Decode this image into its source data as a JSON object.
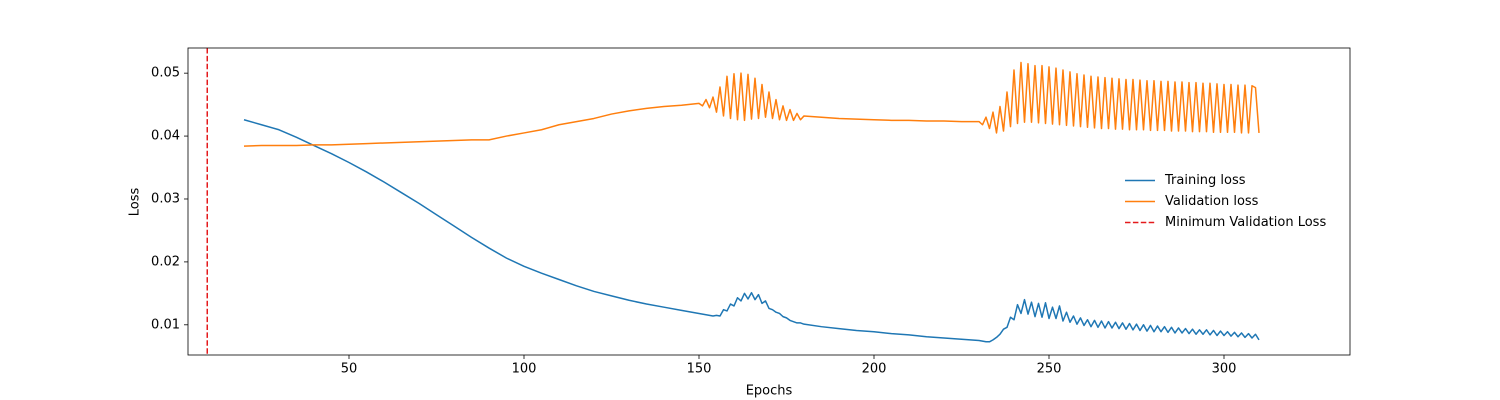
{
  "chart_data": {
    "type": "line",
    "xlabel": "Epochs",
    "ylabel": "Loss",
    "x": [
      20,
      25,
      30,
      35,
      40,
      45,
      50,
      55,
      60,
      65,
      70,
      75,
      80,
      85,
      90,
      95,
      100,
      105,
      110,
      115,
      120,
      125,
      130,
      135,
      140,
      145,
      150,
      151,
      152,
      153,
      154,
      155,
      156,
      157,
      158,
      159,
      160,
      161,
      162,
      163,
      164,
      165,
      166,
      167,
      168,
      169,
      170,
      171,
      172,
      173,
      174,
      175,
      176,
      177,
      178,
      179,
      180,
      185,
      190,
      195,
      200,
      205,
      210,
      215,
      220,
      225,
      230,
      231,
      232,
      233,
      234,
      235,
      236,
      237,
      238,
      239,
      240,
      241,
      242,
      243,
      244,
      245,
      246,
      247,
      248,
      249,
      250,
      251,
      252,
      253,
      254,
      255,
      256,
      257,
      258,
      259,
      260,
      261,
      262,
      263,
      264,
      265,
      266,
      267,
      268,
      269,
      270,
      271,
      272,
      273,
      274,
      275,
      276,
      277,
      278,
      279,
      280,
      281,
      282,
      283,
      284,
      285,
      286,
      287,
      288,
      289,
      290,
      291,
      292,
      293,
      294,
      295,
      296,
      297,
      298,
      299,
      300,
      301,
      302,
      303,
      304,
      305,
      306,
      307,
      308,
      309,
      310
    ],
    "series": [
      {
        "name": "Training loss",
        "color": "#1f77b4",
        "values": [
          0.0426,
          0.0418,
          0.041,
          0.0398,
          0.0385,
          0.0372,
          0.0358,
          0.0343,
          0.0327,
          0.031,
          0.0293,
          0.0275,
          0.0257,
          0.0239,
          0.0222,
          0.0206,
          0.0193,
          0.0182,
          0.0172,
          0.0162,
          0.0153,
          0.0146,
          0.0139,
          0.0133,
          0.0128,
          0.0123,
          0.0118,
          0.0117,
          0.0116,
          0.0115,
          0.0114,
          0.0115,
          0.0114,
          0.0124,
          0.0122,
          0.0133,
          0.013,
          0.0143,
          0.0138,
          0.015,
          0.0141,
          0.0151,
          0.014,
          0.0148,
          0.0134,
          0.0138,
          0.0126,
          0.0124,
          0.012,
          0.0118,
          0.0113,
          0.0111,
          0.0107,
          0.0105,
          0.0103,
          0.0103,
          0.0101,
          0.0097,
          0.0094,
          0.0091,
          0.0089,
          0.0086,
          0.0084,
          0.0081,
          0.0079,
          0.0077,
          0.0075,
          0.0074,
          0.0073,
          0.0073,
          0.0076,
          0.008,
          0.0085,
          0.0093,
          0.0096,
          0.0112,
          0.0108,
          0.0132,
          0.0118,
          0.014,
          0.0117,
          0.0136,
          0.0113,
          0.0134,
          0.0112,
          0.0135,
          0.011,
          0.0128,
          0.011,
          0.013,
          0.0106,
          0.012,
          0.0104,
          0.0114,
          0.0101,
          0.0111,
          0.0099,
          0.0108,
          0.0097,
          0.0107,
          0.0096,
          0.0106,
          0.0095,
          0.0105,
          0.0095,
          0.0104,
          0.0094,
          0.0103,
          0.0093,
          0.0102,
          0.0092,
          0.0101,
          0.0091,
          0.01,
          0.009,
          0.0099,
          0.0089,
          0.0098,
          0.0089,
          0.0097,
          0.0088,
          0.0096,
          0.0087,
          0.0095,
          0.0087,
          0.0094,
          0.0086,
          0.0093,
          0.0085,
          0.0092,
          0.0085,
          0.0092,
          0.0084,
          0.0091,
          0.0083,
          0.009,
          0.0083,
          0.0089,
          0.0082,
          0.0088,
          0.0081,
          0.0087,
          0.008,
          0.0086,
          0.0079,
          0.0085,
          0.0076
        ]
      },
      {
        "name": "Validation loss",
        "color": "#ff7f0e",
        "values": [
          0.0384,
          0.0385,
          0.0385,
          0.0385,
          0.0386,
          0.0386,
          0.0387,
          0.0388,
          0.0389,
          0.039,
          0.0391,
          0.0392,
          0.0393,
          0.0394,
          0.0394,
          0.04,
          0.0405,
          0.041,
          0.0418,
          0.0423,
          0.0428,
          0.0435,
          0.044,
          0.0444,
          0.0447,
          0.0449,
          0.0452,
          0.0448,
          0.0458,
          0.0445,
          0.0462,
          0.0438,
          0.0478,
          0.0432,
          0.0495,
          0.0428,
          0.0499,
          0.0426,
          0.05,
          0.0425,
          0.0498,
          0.0427,
          0.0492,
          0.0428,
          0.0482,
          0.043,
          0.047,
          0.0428,
          0.0458,
          0.0426,
          0.0448,
          0.0425,
          0.0442,
          0.0425,
          0.0436,
          0.0426,
          0.0432,
          0.043,
          0.0428,
          0.0427,
          0.0426,
          0.0425,
          0.0425,
          0.0424,
          0.0424,
          0.0423,
          0.0423,
          0.0418,
          0.043,
          0.0412,
          0.0438,
          0.0405,
          0.0447,
          0.0408,
          0.047,
          0.0415,
          0.0505,
          0.042,
          0.0517,
          0.0422,
          0.0515,
          0.0422,
          0.0512,
          0.0421,
          0.0512,
          0.042,
          0.051,
          0.0419,
          0.0508,
          0.0418,
          0.0505,
          0.0417,
          0.0502,
          0.0416,
          0.0499,
          0.0415,
          0.0497,
          0.0414,
          0.0495,
          0.0413,
          0.0494,
          0.0412,
          0.0493,
          0.0412,
          0.0492,
          0.0411,
          0.0491,
          0.0411,
          0.049,
          0.041,
          0.049,
          0.041,
          0.0489,
          0.041,
          0.0488,
          0.0409,
          0.0488,
          0.0409,
          0.0487,
          0.0409,
          0.0487,
          0.0408,
          0.0486,
          0.0408,
          0.0486,
          0.0408,
          0.0485,
          0.0407,
          0.0485,
          0.0407,
          0.0484,
          0.0407,
          0.0484,
          0.0406,
          0.0483,
          0.0406,
          0.0482,
          0.0406,
          0.0482,
          0.0406,
          0.0481,
          0.0405,
          0.0481,
          0.0405,
          0.048,
          0.0477,
          0.0405
        ]
      }
    ],
    "vlines": [
      {
        "name": "Minimum Validation Loss",
        "x": 9.5,
        "color": "#e41a1c",
        "dashed": true
      }
    ],
    "xlim": [
      4,
      336
    ],
    "ylim": [
      0.0052,
      0.054
    ],
    "xticks": [
      50,
      100,
      150,
      200,
      250,
      300
    ],
    "yticks": [
      0.01,
      0.02,
      0.03,
      0.04,
      0.05
    ],
    "legend": "center right"
  }
}
